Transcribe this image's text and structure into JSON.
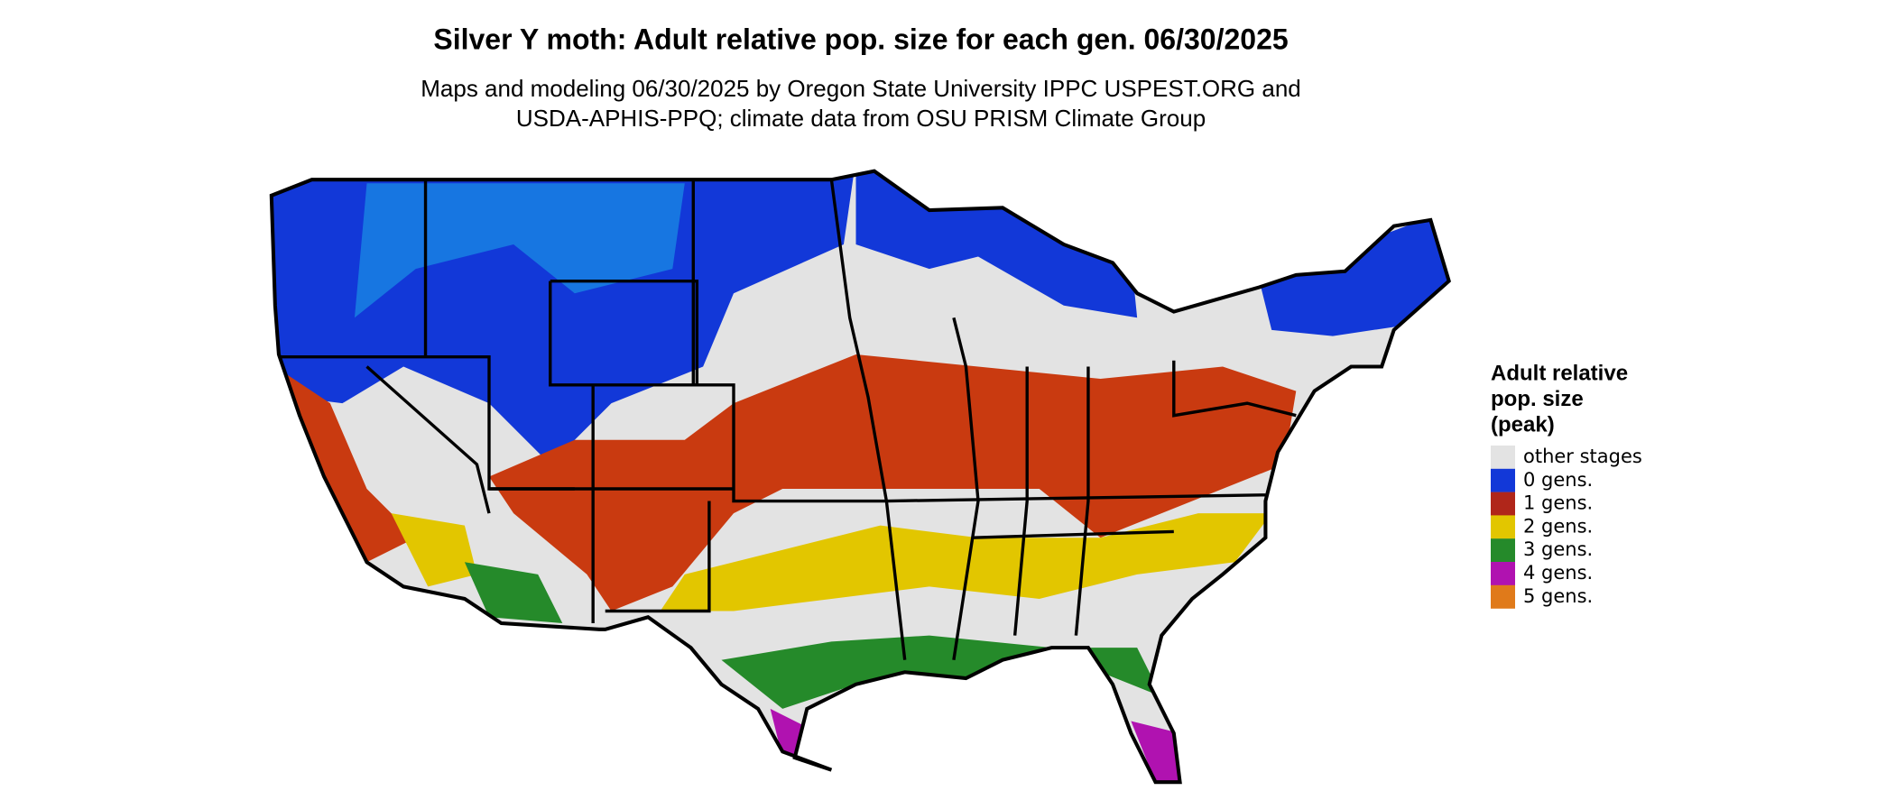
{
  "title": "Silver Y moth: Adult relative pop. size for each gen. 06/30/2025",
  "subtitle": [
    "Maps and modeling 06/30/2025 by Oregon State University IPPC USPEST.ORG and",
    "USDA-APHIS-PPQ; climate data from OSU PRISM Climate Group"
  ],
  "legend": {
    "title": [
      "Adult relative",
      "pop. size",
      "(peak)"
    ],
    "items": [
      {
        "label": "other stages",
        "color": "#e3e3e3"
      },
      {
        "label": "0 gens.",
        "color": "#1238d8"
      },
      {
        "label": "1 gens.",
        "color": "#b0261a"
      },
      {
        "label": "2 gens.",
        "color": "#e2c600"
      },
      {
        "label": "3 gens.",
        "color": "#258a2a"
      },
      {
        "label": "4 gens.",
        "color": "#b012b0"
      },
      {
        "label": "5 gens.",
        "color": "#e07a1a"
      }
    ]
  }
}
